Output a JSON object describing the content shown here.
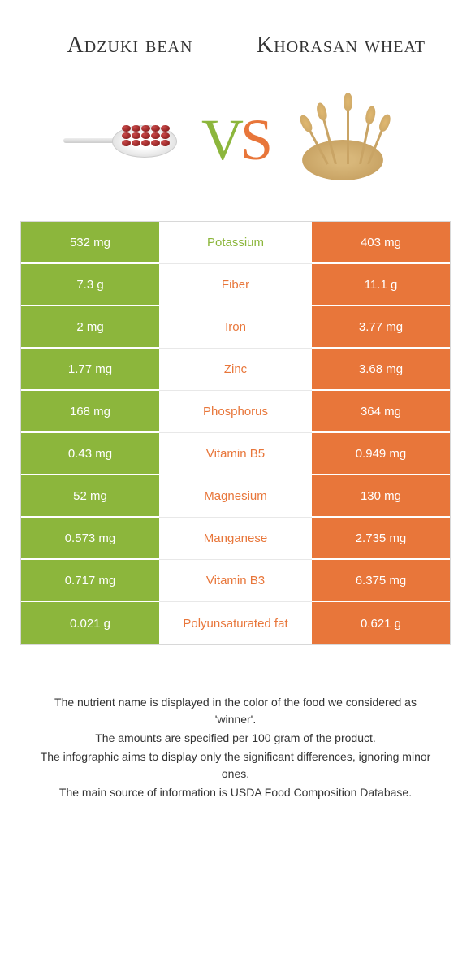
{
  "colors": {
    "left": "#8cb63c",
    "right": "#e8763a",
    "row_border": "#ffffff",
    "mid_border": "#e8e8e8",
    "text_dark": "#333333"
  },
  "foods": {
    "left": {
      "name": "Adzuki bean"
    },
    "right": {
      "name": "Khorasan wheat"
    }
  },
  "vs": {
    "v": "V",
    "s": "S"
  },
  "nutrients": [
    {
      "name": "Potassium",
      "left": "532 mg",
      "right": "403 mg",
      "winner": "left"
    },
    {
      "name": "Fiber",
      "left": "7.3 g",
      "right": "11.1 g",
      "winner": "right"
    },
    {
      "name": "Iron",
      "left": "2 mg",
      "right": "3.77 mg",
      "winner": "right"
    },
    {
      "name": "Zinc",
      "left": "1.77 mg",
      "right": "3.68 mg",
      "winner": "right"
    },
    {
      "name": "Phosphorus",
      "left": "168 mg",
      "right": "364 mg",
      "winner": "right"
    },
    {
      "name": "Vitamin B5",
      "left": "0.43 mg",
      "right": "0.949 mg",
      "winner": "right"
    },
    {
      "name": "Magnesium",
      "left": "52 mg",
      "right": "130 mg",
      "winner": "right"
    },
    {
      "name": "Manganese",
      "left": "0.573 mg",
      "right": "2.735 mg",
      "winner": "right"
    },
    {
      "name": "Vitamin B3",
      "left": "0.717 mg",
      "right": "6.375 mg",
      "winner": "right"
    },
    {
      "name": "Polyunsaturated fat",
      "left": "0.021 g",
      "right": "0.621 g",
      "winner": "right"
    }
  ],
  "footer": [
    "The nutrient name is displayed in the color of the food we considered as 'winner'.",
    "The amounts are specified per 100 gram of the product.",
    "The infographic aims to display only the significant differences, ignoring minor ones.",
    "The main source of information is USDA Food Composition Database."
  ]
}
